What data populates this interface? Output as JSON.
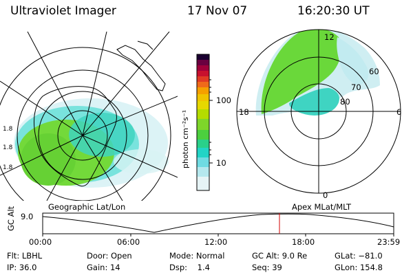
{
  "header": {
    "instrument": "Ultraviolet Imager",
    "date": "17 Nov 07",
    "time": "16:20:30 UT"
  },
  "colorbar": {
    "unit_label": "photon cm⁻²s⁻¹",
    "ticks": [
      "100",
      "10"
    ]
  },
  "left_map": {
    "caption": "Geographic Lat/Lon"
  },
  "right_map": {
    "caption": "Apex MLat/MLT",
    "mlt_labels": {
      "top": "12",
      "bottom": "0",
      "left": "18",
      "right": "6"
    },
    "lat_labels": [
      "60",
      "70",
      "80"
    ]
  },
  "altitude_plot": {
    "ylabel": "GC Alt",
    "ytick": "9.0",
    "xticks": [
      "00:00",
      "06:00",
      "12:00",
      "18:00",
      "23:59"
    ],
    "marker_color": "#d00000"
  },
  "status": {
    "row1": {
      "filter": "Flt: LBHL",
      "door": "Door: Open",
      "mode": "Mode: Normal",
      "gc_alt": "GC Alt: 9.0 Re",
      "glat": "GLat: −81.0"
    },
    "row2": {
      "ip": "IP: 36.0",
      "gain": "Gain: 14",
      "dsp": "Dsp:    1.4",
      "seq": "Seq: 39",
      "glon": "GLon: 154.8"
    }
  }
}
